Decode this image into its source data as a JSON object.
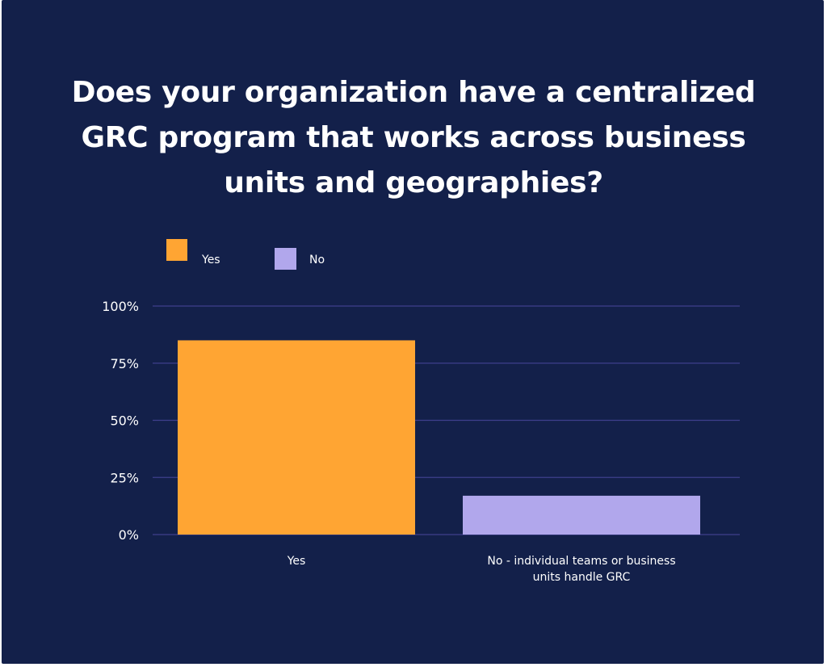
{
  "chart_data": {
    "type": "bar",
    "title": "Does your organization have a centralized GRC program that works across business units and geographies?",
    "categories": [
      "Yes",
      "No - individual teams or business units handle GRC"
    ],
    "category_lines": [
      [
        "Yes"
      ],
      [
        "No - individual teams or business",
        "units handle GRC"
      ]
    ],
    "values": [
      85,
      17
    ],
    "value_unit": "%",
    "ylim": [
      0,
      100
    ],
    "yticks": [
      0,
      25,
      50,
      75,
      100
    ],
    "ytick_labels": [
      "0%",
      "25%",
      "50%",
      "75%",
      "100%"
    ],
    "xlabel": "",
    "ylabel": "",
    "grid": true,
    "legend": {
      "placement": "top-left",
      "entries": [
        {
          "label": "Yes",
          "color": "#ffa533"
        },
        {
          "label": "No",
          "color": "#b1a7ec"
        }
      ]
    },
    "colors": {
      "background": "#13204a",
      "grid": "#3e3f8c",
      "bar_yes": "#ffa533",
      "bar_no": "#b1a7ec",
      "text": "#ffffff"
    }
  }
}
